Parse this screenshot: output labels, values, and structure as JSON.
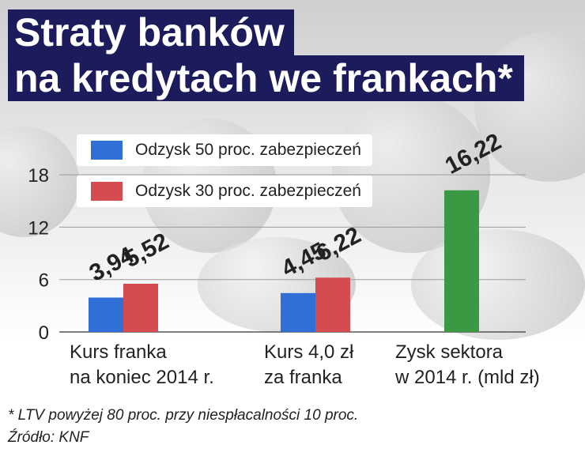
{
  "title_line1": "Straty banków",
  "title_line2": "na kredytach we frankach*",
  "chart_data": {
    "type": "bar",
    "categories": [
      "Kurs franka\nna koniec 2014 r.",
      "Kurs 4,0 zł\nza franka",
      "Zysk sektora\nw 2014 r. (mld zł)"
    ],
    "series": [
      {
        "name": "Odzysk 50 proc. zabezpieczeń",
        "color": "#2f6fd6",
        "values": [
          3.94,
          4.45,
          null
        ]
      },
      {
        "name": "Odzysk 30 proc. zabezpieczeń",
        "color": "#d64b50",
        "values": [
          5.52,
          6.22,
          null
        ]
      },
      {
        "name": "",
        "color": "#3a9a44",
        "values": [
          null,
          null,
          16.22
        ]
      }
    ],
    "value_labels": [
      "3,94",
      "5,52",
      "4,45",
      "6,22",
      "16,22"
    ],
    "yticks": [
      0,
      6,
      12,
      18
    ],
    "ylim": [
      0,
      18
    ],
    "grid": true,
    "legend_position": "top-left"
  },
  "footnote": "* LTV powyżej 80 proc. przy niespłacalności 10 proc.",
  "source": "Źródło: KNF"
}
